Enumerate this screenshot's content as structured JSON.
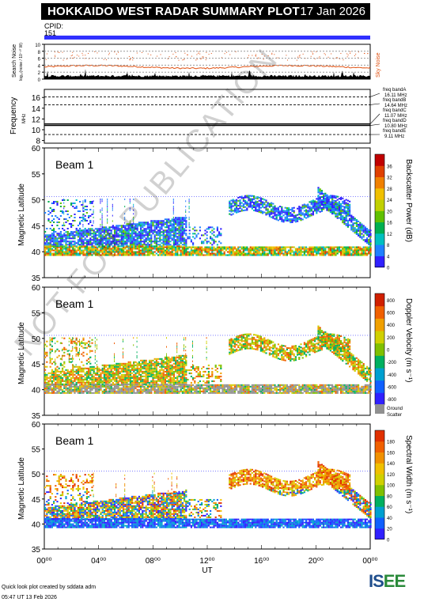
{
  "header": {
    "title": "HOKKAIDO WEST RADAR SUMMARY PLOT",
    "date": "17 Jan 2026",
    "cpid_label": "CPID:",
    "cpid_value": "151"
  },
  "search_noise": {
    "ylabel_top": "Search Noise",
    "ylabel_bottom": "log₁₀(noise / 10⁻¹⁰ W)",
    "ticks": [
      "0",
      "2",
      "4",
      "6",
      "8",
      "10"
    ],
    "sky_label": "Sky Noise",
    "colors": {
      "sky": "#e05010",
      "search": "#000000"
    }
  },
  "frequency": {
    "ylabel": "Frequency",
    "unit": "MHz",
    "ticks": [
      "8",
      "10",
      "12",
      "14",
      "16"
    ],
    "bands": [
      {
        "name": "freq bandA",
        "value": "16.11 MHz",
        "f": 16.11
      },
      {
        "name": "freq bandB",
        "value": "14.64 MHz",
        "f": 14.64
      },
      {
        "name": "freq bandC",
        "value": "11.07 MHz",
        "f": 11.07
      },
      {
        "name": "freq bandD",
        "value": "10.80 MHz",
        "f": 10.8
      },
      {
        "name": "freq bandE",
        "value": "9.11 MHz",
        "f": 9.11
      }
    ]
  },
  "panels": [
    {
      "beam": "Beam  1",
      "ylabel": "Magnetic Latitude",
      "cbar_label": "Backscatter Power (dB)",
      "cbar_ticks": [
        "0",
        "4",
        "8",
        "12",
        "16",
        "20",
        "24",
        "28",
        "32",
        "36"
      ],
      "scheme": "power"
    },
    {
      "beam": "Beam  1",
      "ylabel": "Magnetic Latitude",
      "cbar_label": "Doppler Velocity (m s⁻¹)",
      "cbar_ticks": [
        "-800",
        "-600",
        "-400",
        "-200",
        "0",
        "200",
        "400",
        "600",
        "800"
      ],
      "scheme": "velocity",
      "ground_label_1": "Ground",
      "ground_label_2": "Scatter"
    },
    {
      "beam": "Beam  1",
      "ylabel": "Magnetic Latitude",
      "cbar_label": "Spectral Width (m s⁻¹)",
      "cbar_ticks": [
        "0",
        "20",
        "40",
        "60",
        "80",
        "100",
        "120",
        "140",
        "160",
        "180"
      ],
      "scheme": "width"
    }
  ],
  "chart_data": {
    "type": "heatmap",
    "x_ticks": [
      "00⁰⁰",
      "04⁰⁰",
      "08⁰⁰",
      "12⁰⁰",
      "16⁰⁰",
      "20⁰⁰",
      "00⁰⁰"
    ],
    "xlabel": "UT",
    "ylim": [
      35,
      60
    ],
    "y_ticks": [
      "35",
      "40",
      "45",
      "50",
      "55",
      "60"
    ],
    "xlim_hours": [
      0,
      24
    ]
  },
  "footer": {
    "line1": "Quick look plot created by sddata adm",
    "line2": "05:47 UT 13 Feb 2026"
  },
  "logo": {
    "text_a": "IS",
    "text_b": "EE"
  },
  "watermark": "NOT FOR PUBLICATION"
}
